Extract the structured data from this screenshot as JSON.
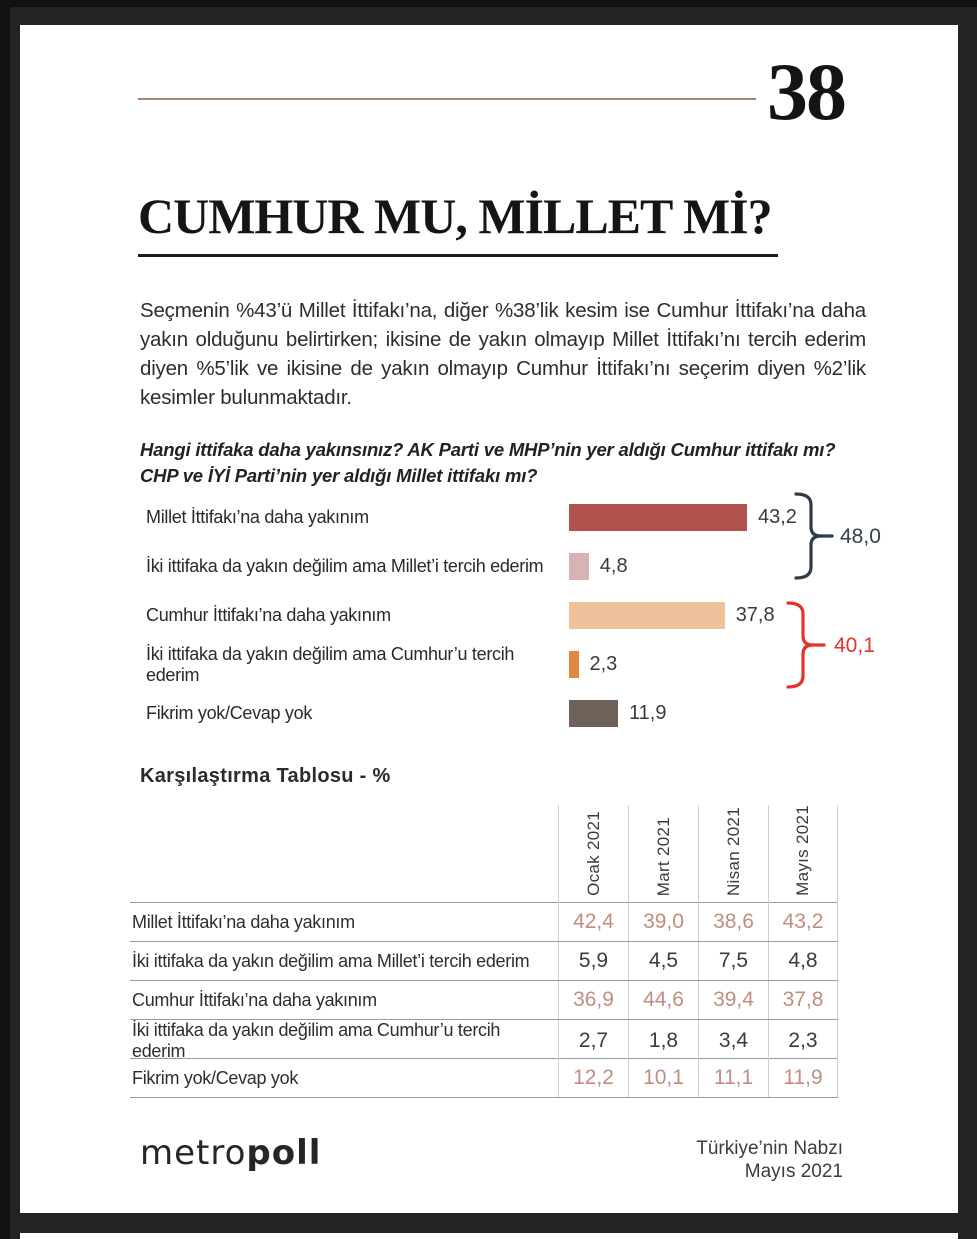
{
  "page": {
    "number": "38",
    "title": "CUMHUR MU, MİLLET Mİ?",
    "intro": "Seçmenin %43’ü Millet İttifakı’na, diğer %38’lik kesim ise Cumhur İttifakı’na daha yakın olduğunu belirtirken; ikisine de yakın olmayıp Millet İttifakı’nı tercih ederim diyen %5’lik ve ikisine de yakın olmayıp Cumhur İttifakı’nı seçerim diyen %2’lik kesimler bulunmaktadır.",
    "question": "Hangi ittifaka daha yakınsınız? AK Parti ve MHP’nin yer aldığı Cumhur ittifakı mı? CHP ve İYİ Parti’nin yer aldığı Millet ittifakı mı?"
  },
  "chart_data": {
    "type": "bar",
    "orientation": "horizontal",
    "categories": [
      "Millet İttifakı’na daha yakınım",
      "İki ittifaka da yakın değilim ama Millet’i tercih ederim",
      "Cumhur İttifakı’na daha yakınım",
      "İki ittifaka da yakın değilim ama Cumhur’u tercih ederim",
      "Fikrim yok/Cevap yok"
    ],
    "values": [
      43.2,
      4.8,
      37.8,
      2.3,
      11.9
    ],
    "value_labels": [
      "43,2",
      "4,8",
      "37,8",
      "2,3",
      "11,9"
    ],
    "bar_colors": [
      "#b0524d",
      "#d9b3b4",
      "#efc29c",
      "#e0873f",
      "#6e6159"
    ],
    "xlim": [
      0,
      45
    ],
    "grid": false,
    "brackets": [
      {
        "label": "48,0",
        "covers_rows": [
          0,
          1
        ],
        "sum_of": [
          43.2,
          4.8
        ],
        "color": "#2e3b4e"
      },
      {
        "label": "40,1",
        "covers_rows": [
          2,
          3
        ],
        "sum_of": [
          37.8,
          2.3
        ],
        "color": "#e5332a"
      }
    ]
  },
  "table": {
    "title": "Karşılaştırma Tablosu - %",
    "columns": [
      "Ocak 2021",
      "Mart 2021",
      "Nisan 2021",
      "Mayıs 2021"
    ],
    "rows": [
      {
        "label": "Millet İttifakı’na daha yakınım",
        "values": [
          "42,4",
          "39,0",
          "38,6",
          "43,2"
        ],
        "accent": true
      },
      {
        "label": "İki ittifaka da yakın değilim ama Millet’i tercih ederim",
        "values": [
          "5,9",
          "4,5",
          "7,5",
          "4,8"
        ],
        "accent": false
      },
      {
        "label": "Cumhur İttifakı’na daha yakınım",
        "values": [
          "36,9",
          "44,6",
          "39,4",
          "37,8"
        ],
        "accent": true
      },
      {
        "label": "İki ittifaka da yakın değilim ama Cumhur’u tercih ederim",
        "values": [
          "2,7",
          "1,8",
          "3,4",
          "2,3"
        ],
        "accent": false
      },
      {
        "label": "Fikrim yok/Cevap yok",
        "values": [
          "12,2",
          "10,1",
          "11,1",
          "11,9"
        ],
        "accent": true
      }
    ],
    "accent_value_color": "#c08d7f",
    "normal_value_color": "#3b3b3b"
  },
  "footer": {
    "logo_metro": "metro",
    "logo_poll": "poll",
    "right_line1": "Türkiye’nin Nabzı",
    "right_line2": "Mayıs 2021"
  },
  "colors": {
    "backdrop": "#232326",
    "page_bg": "#ffffff",
    "header_rule": "#b08273",
    "title_underline": "#1c1c1c",
    "bracket_millet": "#2e3b4e",
    "bracket_cumhur": "#e5332a"
  }
}
